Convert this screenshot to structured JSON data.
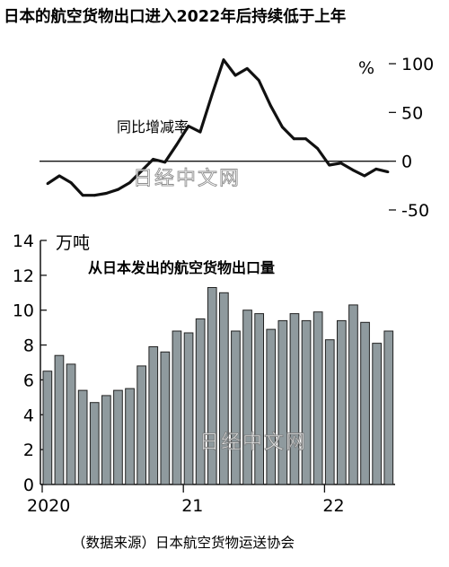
{
  "title": "日本的航空货物出口进入2022年后持续低于上年",
  "source": "（数据来源）日本航空货物运送协会",
  "watermark": "日经中文网",
  "chart_data": [
    {
      "type": "line",
      "label": "同比增减率",
      "unit": "%",
      "ylim": [
        -50,
        100
      ],
      "yticks": [
        100,
        50,
        0,
        -50
      ],
      "color": "#111111",
      "values": [
        -23,
        -15,
        -22,
        -35,
        -35,
        -33,
        -29,
        -22,
        -10,
        2,
        -1,
        17,
        36,
        30,
        68,
        104,
        88,
        95,
        83,
        57,
        35,
        23,
        23,
        13,
        -4,
        -2,
        -9,
        -15,
        -8,
        -11
      ]
    },
    {
      "type": "bar",
      "title": "从日本发出的航空货物出口量",
      "unit": "万吨",
      "ylim": [
        0,
        14
      ],
      "yticks": [
        0,
        2,
        4,
        6,
        8,
        10,
        12,
        14
      ],
      "xticks": [
        "2020",
        "21",
        "22"
      ],
      "bar_color": "#8f9a9e",
      "values": [
        6.5,
        7.4,
        6.9,
        5.4,
        4.7,
        5.1,
        5.4,
        5.5,
        6.8,
        7.9,
        7.6,
        8.8,
        8.7,
        9.5,
        11.3,
        11.0,
        8.8,
        10.0,
        9.8,
        8.9,
        9.4,
        9.8,
        9.4,
        9.9,
        8.3,
        9.4,
        10.3,
        9.3,
        8.1,
        8.8
      ]
    }
  ]
}
